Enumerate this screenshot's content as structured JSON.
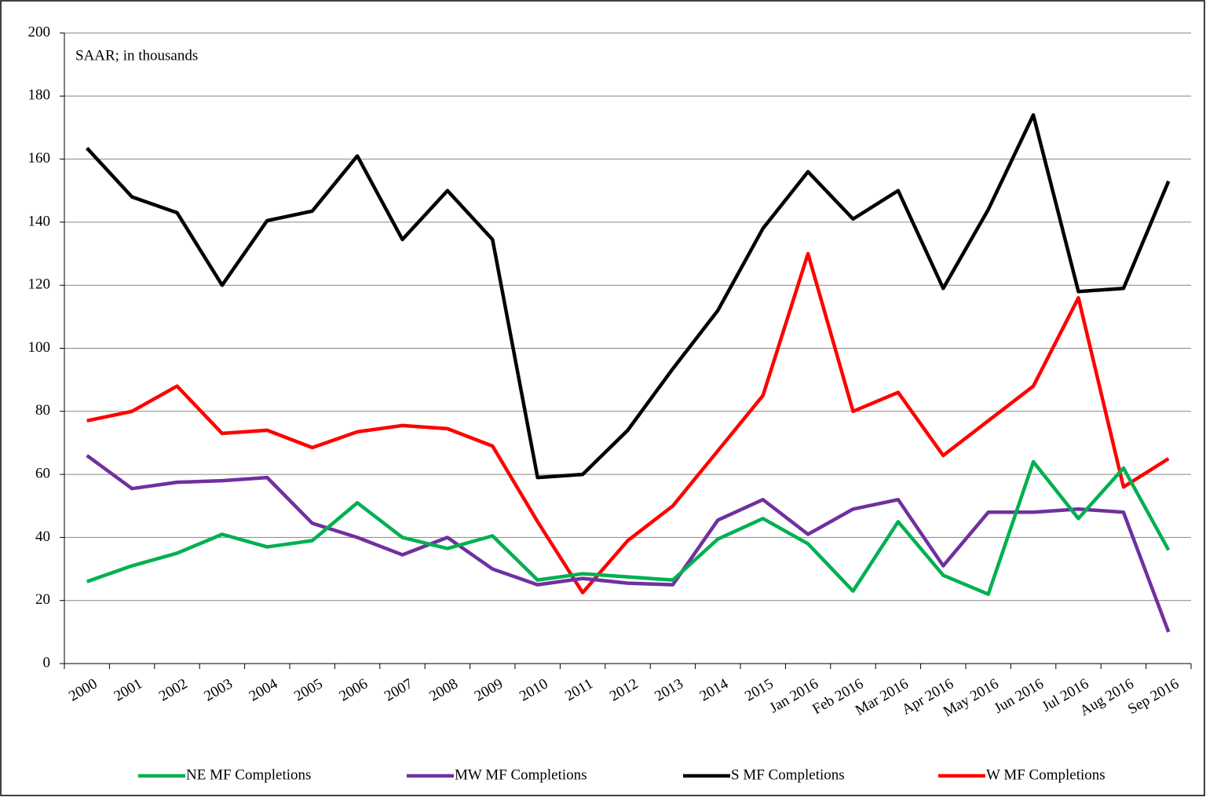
{
  "chart_data": {
    "type": "line",
    "annotation": "SAAR; in thousands",
    "categories": [
      "2000",
      "2001",
      "2002",
      "2003",
      "2004",
      "2005",
      "2006",
      "2007",
      "2008",
      "2009",
      "2010",
      "2011",
      "2012",
      "2013",
      "2014",
      "2015",
      "Jan 2016",
      "Feb 2016",
      "Mar 2016",
      "Apr 2016",
      "May 2016",
      "Jun 2016",
      "Jul 2016",
      "Aug 2016",
      "Sep 2016"
    ],
    "series": [
      {
        "name": "NE MF Completions",
        "color": "#00b050",
        "values": [
          26,
          31,
          35,
          41,
          37,
          39,
          51,
          40,
          36.5,
          40.5,
          26.5,
          28.5,
          27.5,
          26.5,
          39.5,
          46,
          38,
          23,
          45,
          28,
          22,
          64,
          46,
          62,
          36
        ]
      },
      {
        "name": "MW MF Completions",
        "color": "#7030a0",
        "values": [
          66,
          55.5,
          57.5,
          58,
          59,
          44.5,
          40,
          34.5,
          40,
          30,
          25,
          27,
          25.5,
          25,
          45.5,
          52,
          41,
          49,
          52,
          31,
          48,
          48,
          49,
          48,
          10
        ]
      },
      {
        "name": "S MF Completions",
        "color": "#000000",
        "values": [
          163.5,
          148,
          143,
          120,
          140.5,
          143.5,
          161,
          134.5,
          150,
          134.5,
          59,
          60,
          74,
          93.5,
          112,
          138,
          156,
          141,
          150,
          119,
          144,
          174,
          118,
          119,
          153
        ]
      },
      {
        "name": "W MF Completions",
        "color": "#ff0000",
        "values": [
          77,
          80,
          88,
          73,
          74,
          68.5,
          73.5,
          75.5,
          74.5,
          69,
          45,
          22.5,
          39,
          50,
          67.5,
          85,
          130,
          80,
          86,
          66,
          77,
          88,
          116,
          56,
          65
        ]
      }
    ],
    "ylim": [
      0,
      200
    ],
    "yticks": [
      0,
      20,
      40,
      60,
      80,
      100,
      120,
      140,
      160,
      180,
      200
    ],
    "grid": true,
    "legend": "bottom"
  }
}
